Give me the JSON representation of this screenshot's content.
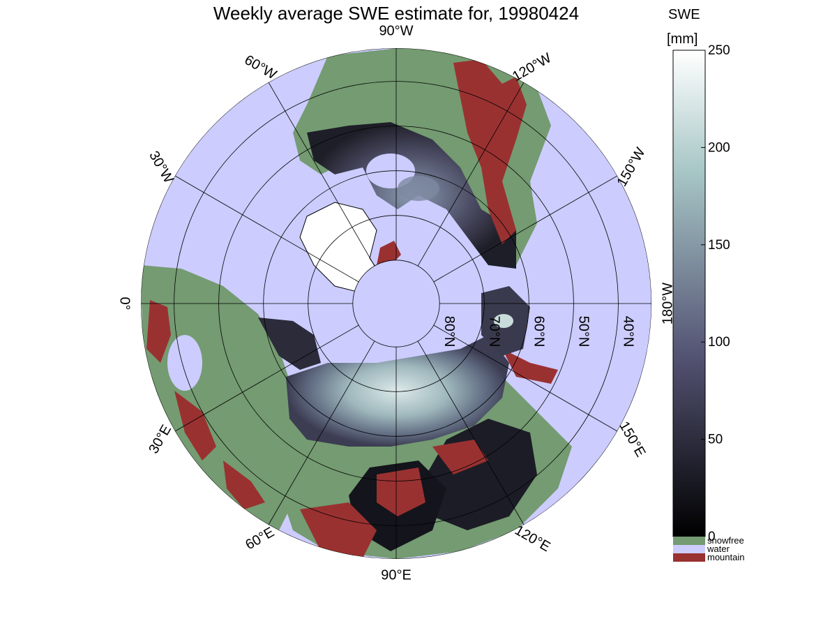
{
  "title": "Weekly average SWE estimate for, 19980424",
  "colorbar": {
    "label_line1": "SWE",
    "label_line2": "[mm]",
    "ticks": [
      {
        "label": "250",
        "value": 250
      },
      {
        "label": "200",
        "value": 200
      },
      {
        "label": "150",
        "value": 150
      },
      {
        "label": "100",
        "value": 100
      },
      {
        "label": "50",
        "value": 50
      },
      {
        "label": "0",
        "value": 0
      }
    ],
    "range": [
      0,
      250
    ],
    "colormap": "bone"
  },
  "legend": [
    {
      "label": "snowfree",
      "color": "#749b71"
    },
    {
      "label": "water",
      "color": "#ccccff"
    },
    {
      "label": "mountain",
      "color": "#9a3131"
    }
  ],
  "map": {
    "projection": "north-polar-stereographic",
    "water_color": "#ccccff",
    "land_color": "#749b71",
    "mountain_color": "#9a3131",
    "meridian_labels": [
      {
        "label": "90",
        "suffix": "W",
        "deg": 90
      },
      {
        "label": "120",
        "suffix": "W",
        "deg": 120
      },
      {
        "label": "150",
        "suffix": "W",
        "deg": 150
      },
      {
        "label": "180",
        "suffix": "W",
        "deg": 180
      },
      {
        "label": "150",
        "suffix": "E",
        "deg": 210
      },
      {
        "label": "120",
        "suffix": "E",
        "deg": 240
      },
      {
        "label": "90",
        "suffix": "E",
        "deg": 270
      },
      {
        "label": "60",
        "suffix": "E",
        "deg": 300
      },
      {
        "label": "30",
        "suffix": "E",
        "deg": 330
      },
      {
        "label": "0",
        "suffix": "",
        "deg": 0
      },
      {
        "label": "30",
        "suffix": "W",
        "deg": 30
      },
      {
        "label": "60",
        "suffix": "W",
        "deg": 60
      }
    ],
    "parallel_labels": [
      {
        "label": "80",
        "suffix": "N",
        "lat": 80
      },
      {
        "label": "70",
        "suffix": "N",
        "lat": 70
      },
      {
        "label": "60",
        "suffix": "N",
        "lat": 60
      },
      {
        "label": "50",
        "suffix": "N",
        "lat": 50
      },
      {
        "label": "40",
        "suffix": "N",
        "lat": 40
      }
    ]
  }
}
